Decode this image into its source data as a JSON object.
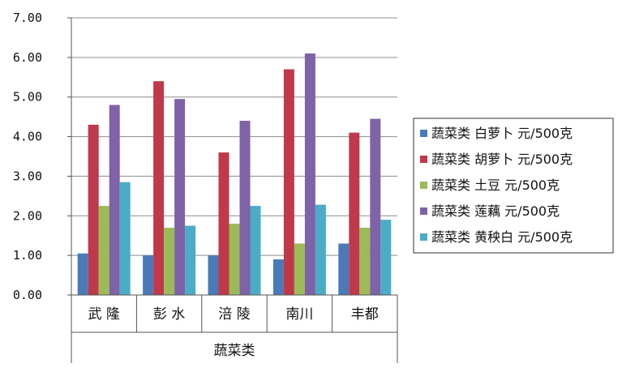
{
  "chart_data": {
    "type": "bar",
    "categories": [
      "武 隆",
      "彭 水",
      "涪 陵",
      "南川",
      "丰都"
    ],
    "group_label": "蔬菜类",
    "ylim": [
      0,
      7
    ],
    "yticks": [
      "0.00",
      "1.00",
      "2.00",
      "3.00",
      "4.00",
      "5.00",
      "6.00",
      "7.00"
    ],
    "grid": true,
    "legend_position": "right",
    "series": [
      {
        "name": "蔬菜类  白萝卜  元/500克",
        "color": "#4a7ab8",
        "values": [
          1.05,
          1.0,
          1.0,
          0.9,
          1.3
        ]
      },
      {
        "name": "蔬菜类  胡萝卜  元/500克",
        "color": "#c0394b",
        "values": [
          4.3,
          5.4,
          3.6,
          5.7,
          4.1
        ]
      },
      {
        "name": "蔬菜类  土豆  元/500克",
        "color": "#9bbb59",
        "values": [
          2.25,
          1.7,
          1.8,
          1.3,
          1.7
        ]
      },
      {
        "name": "蔬菜类  莲藕  元/500克",
        "color": "#7f62a7",
        "values": [
          4.8,
          4.95,
          4.4,
          6.1,
          4.45
        ]
      },
      {
        "name": "蔬菜类  黄秧白  元/500克",
        "color": "#4bacc6",
        "values": [
          2.85,
          1.75,
          2.25,
          2.28,
          1.9
        ]
      }
    ]
  }
}
